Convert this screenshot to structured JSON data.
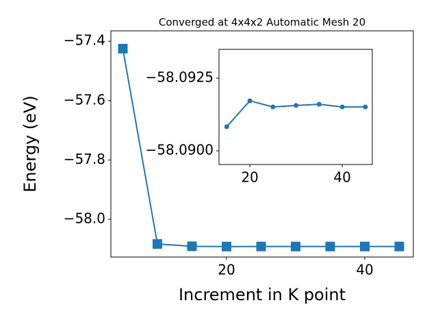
{
  "chart_data": [
    {
      "type": "line",
      "title": "Converged at 4x4x2 Automatic Mesh 20",
      "x_label": "Increment in K point",
      "y_label": "Energy (eV)",
      "x": [
        5,
        10,
        15,
        20,
        25,
        30,
        35,
        40,
        45
      ],
      "series": [
        {
          "color": "#1f77b4",
          "marker": "square",
          "values": [
            -57.425,
            -58.083,
            -58.0908,
            -58.0917,
            -58.0915,
            -58.0916,
            -58.0916,
            -58.0915,
            -58.0915
          ]
        }
      ],
      "xlim": [
        3.27,
        47.03
      ],
      "ylim": [
        -58.127,
        -57.365
      ],
      "xticks": [
        20,
        40
      ],
      "yticks": [
        {
          "value": -58.0,
          "label": "−58.0"
        },
        {
          "value": -57.8,
          "label": "−57.8"
        },
        {
          "value": -57.6,
          "label": "−57.6"
        },
        {
          "value": -57.4,
          "label": "−57.4"
        }
      ]
    },
    {
      "type": "line",
      "x": [
        15,
        20,
        25,
        30,
        35,
        40,
        45
      ],
      "series": [
        {
          "color": "#1f77b4",
          "marker": "circle",
          "values": [
            -58.09083,
            -58.09172,
            -58.09151,
            -58.09156,
            -58.0916,
            -58.09151,
            -58.09151
          ]
        }
      ],
      "xlim": [
        13.33,
        46.5
      ],
      "ylim": [
        -58.08953,
        -58.09349
      ],
      "xticks": [
        20,
        40
      ],
      "yticks": [
        {
          "value": -58.09,
          "label": "−58.0900"
        },
        {
          "value": -58.0925,
          "label": "−58.0925"
        }
      ]
    }
  ]
}
